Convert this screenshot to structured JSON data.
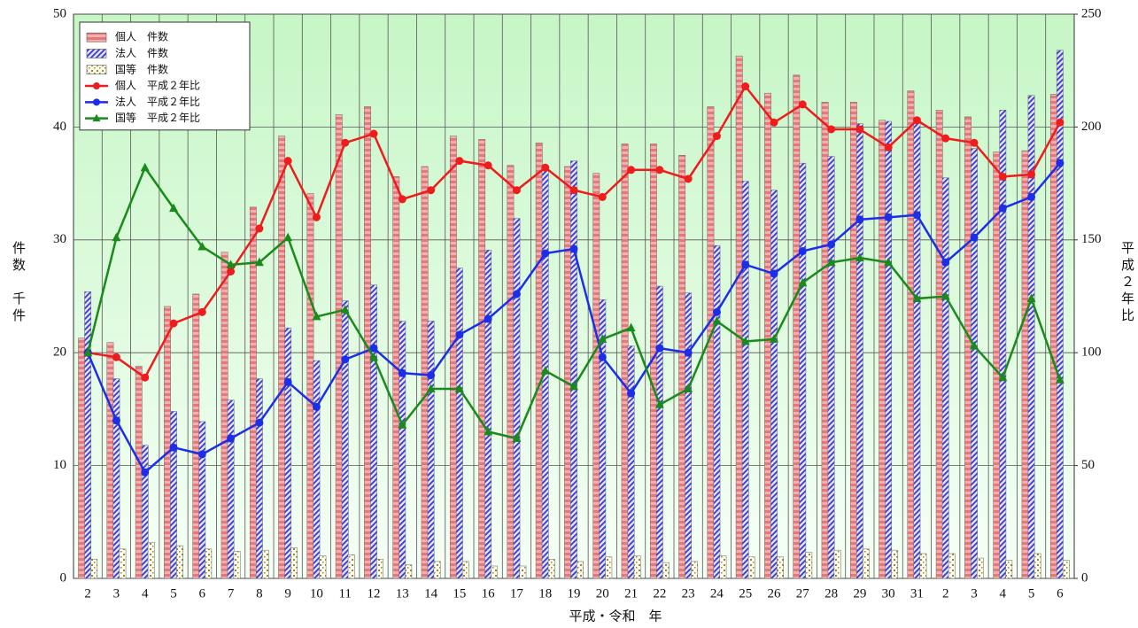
{
  "chart_data": {
    "type": "bar",
    "categories": [
      "2",
      "3",
      "4",
      "5",
      "6",
      "7",
      "8",
      "9",
      "10",
      "11",
      "12",
      "13",
      "14",
      "15",
      "16",
      "17",
      "18",
      "19",
      "20",
      "21",
      "22",
      "23",
      "24",
      "25",
      "26",
      "27",
      "28",
      "29",
      "30",
      "31",
      "2",
      "3",
      "4",
      "5",
      "6"
    ],
    "x_label": "平成・令和　年",
    "y_label": "件数　千件",
    "y2_label": "平成２年比",
    "ylim": [
      0,
      50
    ],
    "yticks": [
      0,
      10,
      20,
      30,
      40,
      50
    ],
    "y2lim": [
      0,
      250
    ],
    "y2ticks": [
      0,
      50,
      100,
      150,
      200,
      250
    ],
    "grid": true,
    "legend": "upper left",
    "series": [
      {
        "name": "個人　件数",
        "type": "bar",
        "color": "#e87878",
        "pattern": "stripes",
        "values": [
          21.3,
          20.9,
          18.8,
          24.1,
          25.2,
          28.9,
          32.9,
          39.2,
          34.1,
          41.1,
          41.8,
          35.6,
          36.5,
          39.2,
          38.9,
          36.6,
          38.6,
          36.5,
          35.9,
          38.5,
          38.5,
          37.5,
          41.8,
          46.3,
          43.0,
          44.6,
          42.2,
          42.2,
          40.6,
          43.2,
          41.5,
          40.9,
          37.8,
          37.9,
          42.9
        ]
      },
      {
        "name": "法人　件数",
        "type": "bar",
        "color": "#3a3ad0",
        "pattern": "hatch",
        "values": [
          25.4,
          17.7,
          11.8,
          14.8,
          13.9,
          15.8,
          17.7,
          22.2,
          19.3,
          24.6,
          26.0,
          22.8,
          22.8,
          27.5,
          29.1,
          31.9,
          36.3,
          37.0,
          24.7,
          20.6,
          25.9,
          25.3,
          29.5,
          35.2,
          34.4,
          36.8,
          37.4,
          40.3,
          40.5,
          40.8,
          35.5,
          38.1,
          41.5,
          42.8,
          46.8
        ]
      },
      {
        "name": "国等　件数",
        "type": "bar",
        "color": "#8a8a50",
        "pattern": "dots",
        "values": [
          1.7,
          2.6,
          3.2,
          2.9,
          2.6,
          2.4,
          2.5,
          2.7,
          2.0,
          2.1,
          1.7,
          1.2,
          1.5,
          1.5,
          1.1,
          1.1,
          1.7,
          1.5,
          1.9,
          2.0,
          1.4,
          1.5,
          2.0,
          1.9,
          1.9,
          2.3,
          2.5,
          2.6,
          2.5,
          2.2,
          2.2,
          1.8,
          1.6,
          2.2,
          1.6
        ]
      },
      {
        "name": "個人　平成２年比",
        "type": "line",
        "axis": "y2",
        "color": "#ee1c1c",
        "marker": "circle",
        "values": [
          100,
          98,
          89,
          113,
          118,
          136,
          155,
          185,
          160,
          193,
          197,
          168,
          172,
          185,
          183,
          172,
          182,
          172,
          169,
          181,
          181,
          177,
          196,
          218,
          202,
          210,
          199,
          199,
          191,
          203,
          195,
          193,
          178,
          179,
          202
        ]
      },
      {
        "name": "法人　平成２年比",
        "type": "line",
        "axis": "y2",
        "color": "#1c2ee8",
        "marker": "circle",
        "values": [
          100,
          70,
          47,
          58,
          55,
          62,
          69,
          87,
          76,
          97,
          102,
          91,
          90,
          108,
          115,
          126,
          144,
          146,
          98,
          82,
          102,
          100,
          118,
          139,
          135,
          145,
          148,
          159,
          160,
          161,
          140,
          151,
          164,
          169,
          184
        ]
      },
      {
        "name": "国等　平成２年比",
        "type": "line",
        "axis": "y2",
        "color": "#1a8a1a",
        "marker": "triangle",
        "values": [
          100,
          151,
          182,
          164,
          147,
          139,
          140,
          151,
          116,
          119,
          98,
          68,
          84,
          84,
          65,
          62,
          92,
          85,
          106,
          111,
          77,
          84,
          114,
          105,
          106,
          131,
          140,
          142,
          140,
          124,
          125,
          103,
          89,
          124,
          88
        ]
      }
    ]
  }
}
